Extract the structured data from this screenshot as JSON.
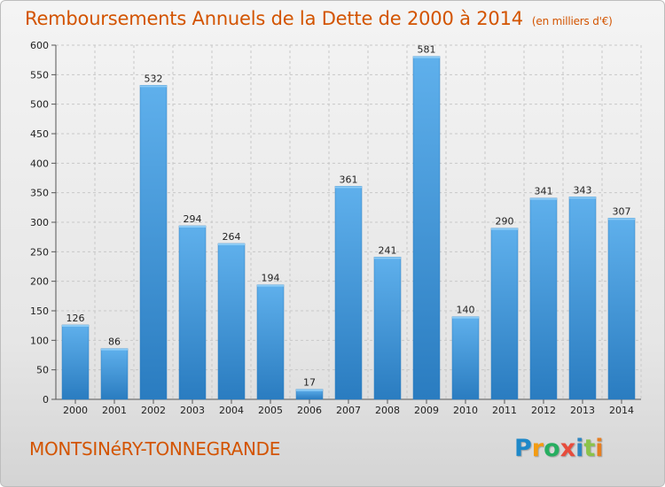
{
  "chart_data": {
    "type": "bar",
    "title": "Remboursements Annuels de la Dette de 2000 à 2014",
    "unit": "(en milliers d'€)",
    "xlabel": "",
    "ylabel": "",
    "categories": [
      "2000",
      "2001",
      "2002",
      "2003",
      "2004",
      "2005",
      "2006",
      "2007",
      "2008",
      "2009",
      "2010",
      "2011",
      "2012",
      "2013",
      "2014"
    ],
    "values": [
      126,
      86,
      532,
      294,
      264,
      194,
      17,
      361,
      241,
      581,
      140,
      290,
      341,
      343,
      307
    ],
    "ylim": [
      0,
      600
    ],
    "yticks": [
      0,
      50,
      100,
      150,
      200,
      250,
      300,
      350,
      400,
      450,
      500,
      550,
      600
    ],
    "grid": true,
    "bar_color": "#3a8fd4"
  },
  "commune": "MONTSINéRY-TONNEGRANDE",
  "logo": {
    "letters": [
      "P",
      "r",
      "o",
      "x",
      "i",
      "t",
      "i"
    ]
  }
}
